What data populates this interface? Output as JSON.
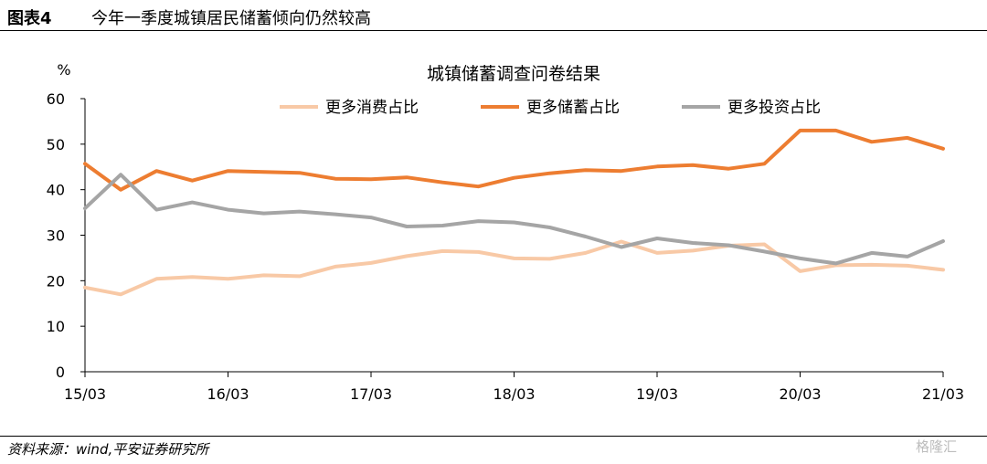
{
  "figure": {
    "number": "图表4",
    "title": "今年一季度城镇居民储蓄倾向仍然较高",
    "source": "资料来源：wind,平安证券研究所",
    "watermark": "格隆汇"
  },
  "chart_data": {
    "type": "line",
    "title": "城镇储蓄调查问卷结果",
    "ylabel": "%",
    "xlabel": "",
    "ylim": [
      0,
      60
    ],
    "yticks": [
      0,
      10,
      20,
      30,
      40,
      50,
      60
    ],
    "xtick_labels": [
      "15/03",
      "16/03",
      "17/03",
      "18/03",
      "19/03",
      "20/03",
      "21/03"
    ],
    "x": [
      "15/03",
      "15/06",
      "15/09",
      "15/12",
      "16/03",
      "16/06",
      "16/09",
      "16/12",
      "17/03",
      "17/06",
      "17/09",
      "17/12",
      "18/03",
      "18/06",
      "18/09",
      "18/12",
      "19/03",
      "19/06",
      "19/09",
      "19/12",
      "20/03",
      "20/06",
      "20/09",
      "20/12",
      "21/03"
    ],
    "grid": false,
    "legend_position": "top",
    "series": [
      {
        "name": "更多消费占比",
        "color": "#f8c9a6",
        "values": [
          18.5,
          17.0,
          20.4,
          20.8,
          20.4,
          21.2,
          21.0,
          23.1,
          23.9,
          25.4,
          26.5,
          26.3,
          24.9,
          24.8,
          26.1,
          28.6,
          26.1,
          26.6,
          27.7,
          28.0,
          22.1,
          23.4,
          23.5,
          23.3,
          22.4
        ]
      },
      {
        "name": "更多储蓄占比",
        "color": "#ed7d31",
        "values": [
          45.7,
          40.0,
          44.1,
          42.0,
          44.1,
          43.9,
          43.7,
          42.4,
          42.3,
          42.7,
          41.6,
          40.7,
          42.6,
          43.6,
          44.3,
          44.1,
          45.1,
          45.4,
          44.6,
          45.7,
          53.0,
          53.0,
          50.5,
          51.4,
          49.0
        ]
      },
      {
        "name": "更多投资占比",
        "color": "#a5a5a5",
        "values": [
          35.9,
          43.3,
          35.6,
          37.2,
          35.6,
          34.8,
          35.2,
          34.6,
          33.9,
          31.9,
          32.1,
          33.1,
          32.8,
          31.7,
          29.7,
          27.4,
          29.3,
          28.3,
          27.8,
          26.4,
          24.9,
          23.8,
          26.1,
          25.3,
          28.7
        ]
      }
    ]
  }
}
